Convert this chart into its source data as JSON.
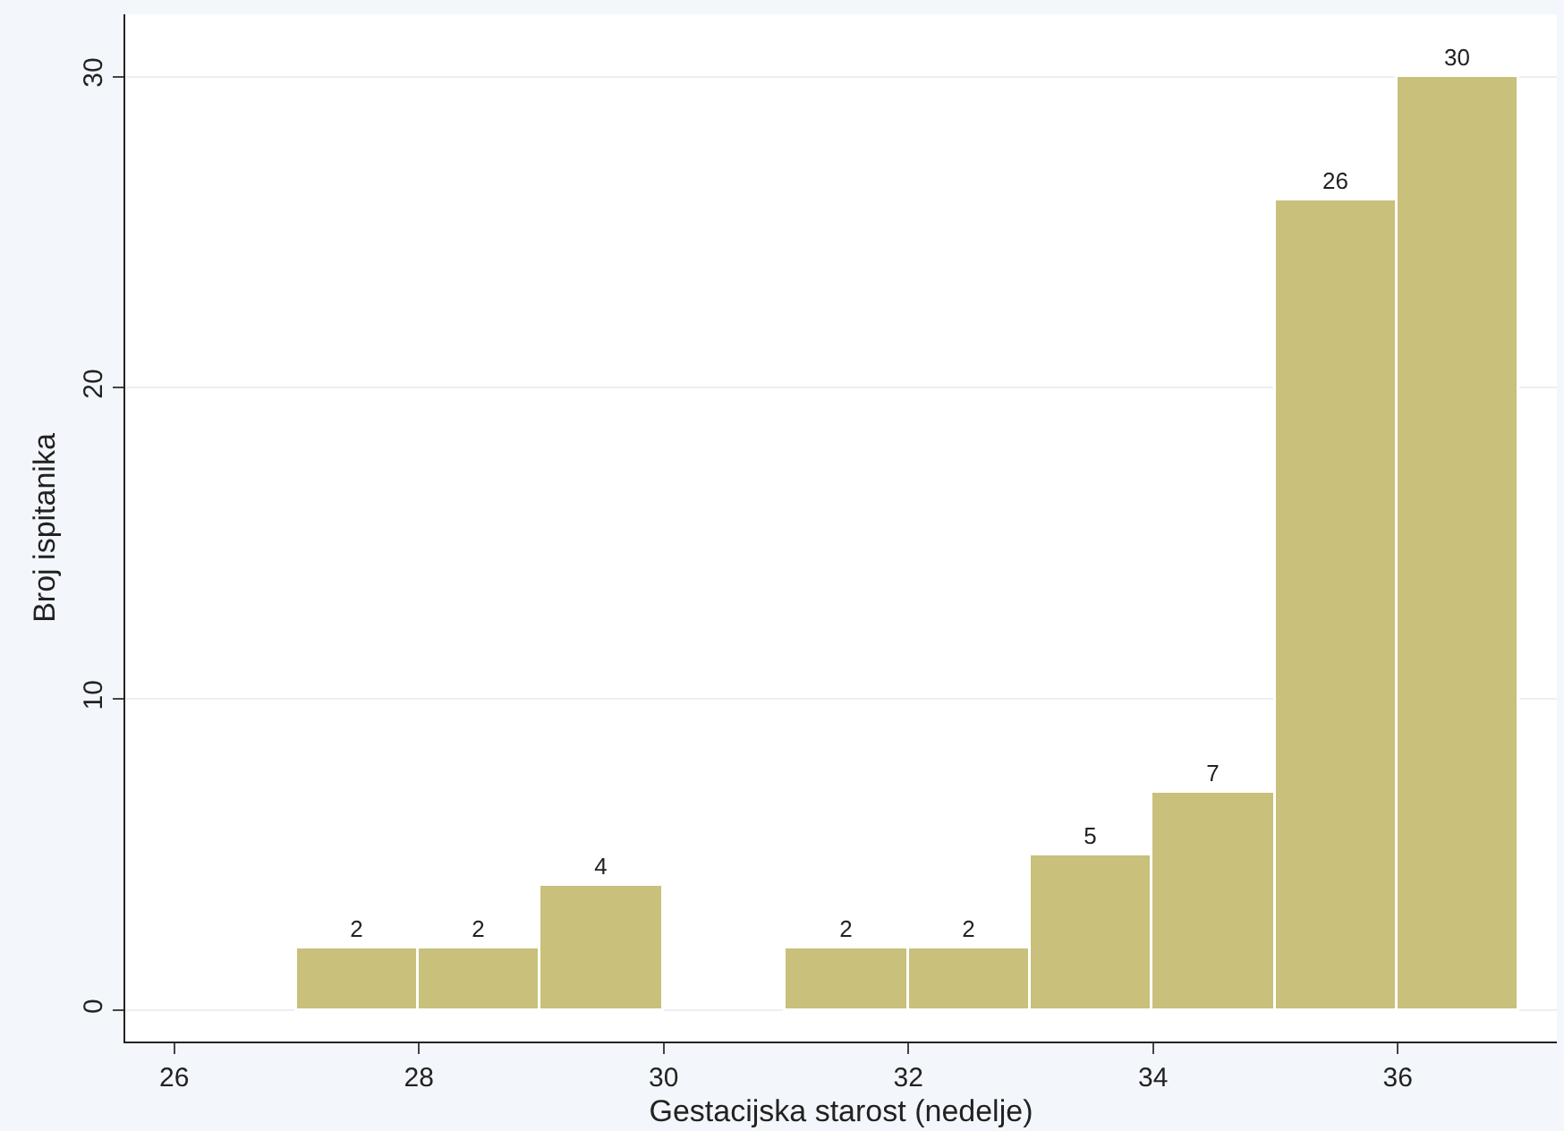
{
  "chart_data": {
    "type": "histogram",
    "xlabel": "Gestacijska starost (nedelje)",
    "ylabel": "Broj ispitanika",
    "bins": [
      26,
      27,
      28,
      29,
      30,
      31,
      32,
      33,
      34,
      35,
      36,
      37
    ],
    "values": [
      0,
      2,
      2,
      4,
      0,
      2,
      2,
      5,
      7,
      26,
      30
    ],
    "value_labels": [
      null,
      "2",
      "2",
      "4",
      null,
      "2",
      "2",
      "5",
      "7",
      "26",
      "30"
    ],
    "color": "#c9c07b",
    "xlim": [
      25.6,
      37.3
    ],
    "xticks": [
      26,
      28,
      30,
      32,
      34,
      36
    ],
    "ylim": [
      -1,
      32
    ],
    "yticks": [
      0,
      10,
      20,
      30
    ],
    "grid": "y"
  }
}
